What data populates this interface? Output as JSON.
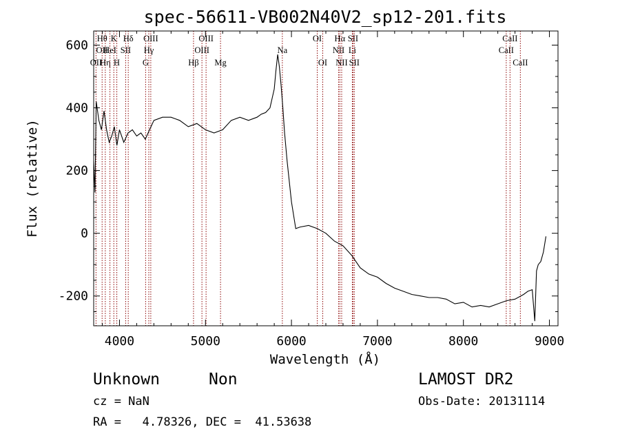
{
  "chart_data": {
    "type": "line",
    "title": "spec-56611-VB002N40V2_sp12-201.fits",
    "xlabel": "Wavelength (Å)",
    "ylabel": "Flux (relative)",
    "xlim": [
      3700,
      9100
    ],
    "ylim": [
      -295,
      645
    ],
    "xticks": [
      4000,
      5000,
      6000,
      7000,
      8000,
      9000
    ],
    "yticks": [
      -200,
      0,
      200,
      400,
      600
    ],
    "grid": false,
    "legend": "none",
    "line_color": "#000000",
    "marker_color": "#8b0000",
    "series": [
      {
        "x": [
          3700,
          3715,
          3730,
          3760,
          3790,
          3820,
          3850,
          3880,
          3910,
          3940,
          3970,
          4000,
          4050,
          4100,
          4150,
          4200,
          4250,
          4300,
          4350,
          4400,
          4500,
          4600,
          4700,
          4800,
          4900,
          5000,
          5100,
          5200,
          5300,
          5400,
          5500,
          5600,
          5650,
          5700,
          5750,
          5800,
          5820,
          5840,
          5860,
          5880,
          5900,
          5920,
          5950,
          6000,
          6050,
          6100,
          6200,
          6300,
          6400,
          6500,
          6600,
          6700,
          6800,
          6900,
          7000,
          7100,
          7200,
          7300,
          7400,
          7500,
          7600,
          7700,
          7800,
          7900,
          8000,
          8100,
          8200,
          8300,
          8400,
          8500,
          8600,
          8700,
          8750,
          8800,
          8830,
          8850,
          8870,
          8900,
          8930,
          8960
        ],
        "y": [
          230,
          130,
          420,
          360,
          330,
          390,
          330,
          290,
          310,
          340,
          280,
          330,
          290,
          320,
          330,
          310,
          320,
          300,
          330,
          360,
          370,
          370,
          360,
          340,
          350,
          330,
          320,
          330,
          360,
          370,
          360,
          370,
          380,
          385,
          400,
          460,
          520,
          570,
          530,
          470,
          400,
          320,
          230,
          100,
          15,
          20,
          25,
          15,
          0,
          -25,
          -40,
          -70,
          -110,
          -130,
          -140,
          -160,
          -175,
          -185,
          -195,
          -200,
          -205,
          -205,
          -210,
          -225,
          -220,
          -235,
          -230,
          -235,
          -225,
          -215,
          -210,
          -195,
          -185,
          -180,
          -280,
          -120,
          -100,
          -90,
          -60,
          -10
        ]
      }
    ],
    "lines": [
      {
        "wavelength": 3727,
        "labels": [
          {
            "text": "OII",
            "row": 2
          }
        ]
      },
      {
        "wavelength": 3798,
        "labels": [
          {
            "text": "Hθ",
            "row": 0
          },
          {
            "text": "OII",
            "row": 1
          }
        ]
      },
      {
        "wavelength": 3835,
        "labels": [
          {
            "text": "Hη",
            "row": 2
          }
        ]
      },
      {
        "wavelength": 3889,
        "labels": [
          {
            "text": "HeI",
            "row": 1
          }
        ]
      },
      {
        "wavelength": 3934,
        "labels": [
          {
            "text": "K",
            "row": 0
          }
        ]
      },
      {
        "wavelength": 3969,
        "labels": [
          {
            "text": "H",
            "row": 2
          }
        ]
      },
      {
        "wavelength": 4072,
        "labels": [
          {
            "text": "SII",
            "row": 1
          }
        ]
      },
      {
        "wavelength": 4102,
        "labels": [
          {
            "text": "Hδ",
            "row": 0
          }
        ]
      },
      {
        "wavelength": 4304,
        "labels": [
          {
            "text": "G",
            "row": 2
          }
        ]
      },
      {
        "wavelength": 4341,
        "labels": [
          {
            "text": "Hγ",
            "row": 1
          }
        ]
      },
      {
        "wavelength": 4364,
        "labels": [
          {
            "text": "OIII",
            "row": 0
          }
        ]
      },
      {
        "wavelength": 4861,
        "labels": [
          {
            "text": "Hβ",
            "row": 2
          }
        ]
      },
      {
        "wavelength": 4959,
        "labels": [
          {
            "text": "OIII",
            "row": 1
          }
        ]
      },
      {
        "wavelength": 5007,
        "labels": [
          {
            "text": "OIII",
            "row": 0
          }
        ]
      },
      {
        "wavelength": 5175,
        "labels": [
          {
            "text": "Mg",
            "row": 2
          }
        ]
      },
      {
        "wavelength": 5894,
        "labels": [
          {
            "text": "Na",
            "row": 1
          }
        ]
      },
      {
        "wavelength": 6300,
        "labels": [
          {
            "text": "OI",
            "row": 0
          }
        ]
      },
      {
        "wavelength": 6364,
        "labels": [
          {
            "text": "OI",
            "row": 2
          }
        ]
      },
      {
        "wavelength": 6548,
        "labels": [
          {
            "text": "NII",
            "row": 1
          }
        ]
      },
      {
        "wavelength": 6563,
        "labels": [
          {
            "text": "Hα",
            "row": 0
          }
        ]
      },
      {
        "wavelength": 6584,
        "labels": [
          {
            "text": "NII",
            "row": 2
          }
        ]
      },
      {
        "wavelength": 6708,
        "labels": [
          {
            "text": "Li",
            "row": 1
          }
        ]
      },
      {
        "wavelength": 6716,
        "labels": [
          {
            "text": "SII",
            "row": 0
          }
        ]
      },
      {
        "wavelength": 6731,
        "labels": [
          {
            "text": "SII",
            "row": 2
          }
        ]
      },
      {
        "wavelength": 8498,
        "labels": [
          {
            "text": "CaII",
            "row": 1
          }
        ]
      },
      {
        "wavelength": 8542,
        "labels": [
          {
            "text": "CaII",
            "row": 0
          }
        ]
      },
      {
        "wavelength": 8662,
        "labels": [
          {
            "text": "CaII",
            "row": 2
          }
        ]
      }
    ]
  },
  "info": {
    "classification": "Unknown",
    "subclass": "Non",
    "survey": "LAMOST DR2",
    "cz": "cz = NaN",
    "obs_date": "Obs-Date: 20131114",
    "coords": "RA =   4.78326, DEC =  41.53638"
  }
}
